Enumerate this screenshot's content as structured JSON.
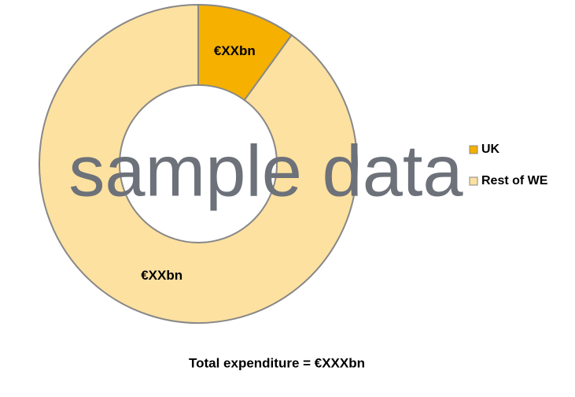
{
  "chart_data": {
    "type": "donut",
    "title": "Total expenditure = €XXXbn",
    "annotation": "sample data",
    "categories": [
      "UK",
      "Rest of WE"
    ],
    "values": [
      10,
      90
    ],
    "value_labels": [
      "€XXbn",
      "€XXbn"
    ],
    "colors": [
      "#f5b000",
      "#fde1a0"
    ],
    "legend": "right"
  }
}
